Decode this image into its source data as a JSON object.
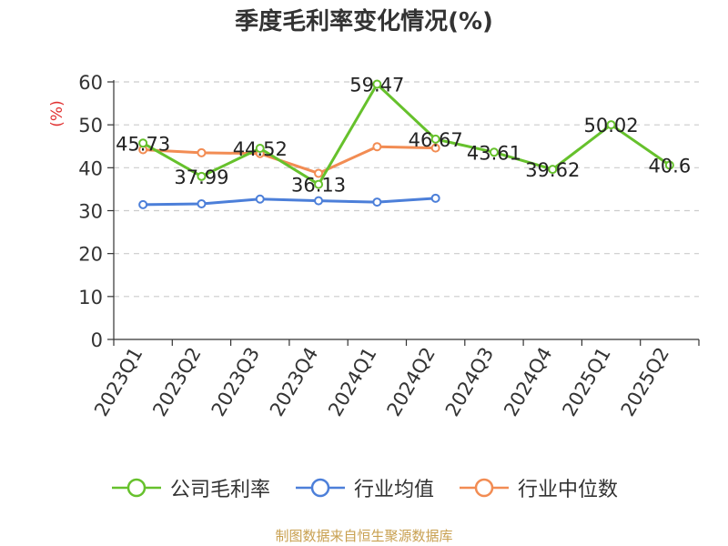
{
  "chart_data": {
    "type": "line",
    "title": "季度毛利率变化情况(%)",
    "ylabel": "(%)",
    "categories": [
      "2023Q1",
      "2023Q2",
      "2023Q3",
      "2023Q4",
      "2024Q1",
      "2024Q2",
      "2024Q3",
      "2024Q4",
      "2025Q1",
      "2025Q2"
    ],
    "ylim": [
      0,
      60
    ],
    "yticks": [
      0,
      10,
      20,
      30,
      40,
      50,
      60
    ],
    "grid": true,
    "legend_position": "bottom",
    "series": [
      {
        "name": "公司毛利率",
        "color": "#66c12c",
        "values": [
          45.73,
          37.99,
          44.52,
          36.13,
          59.47,
          46.67,
          43.61,
          39.62,
          50.02,
          40.6
        ],
        "labels": [
          "45.73",
          "37.99",
          "44.52",
          "36.13",
          "59.47",
          "46.67",
          "43.61",
          "39.62",
          "50.02",
          "40.6"
        ]
      },
      {
        "name": "行业均值",
        "color": "#4c7fd9",
        "values": [
          31.4,
          31.6,
          32.7,
          32.3,
          32.0,
          32.9,
          null,
          null,
          null,
          null
        ]
      },
      {
        "name": "行业中位数",
        "color": "#f28c53",
        "values": [
          44.2,
          43.5,
          43.3,
          38.7,
          44.9,
          44.6,
          null,
          null,
          null,
          null
        ]
      }
    ]
  },
  "source": "制图数据来自恒生聚源数据库"
}
